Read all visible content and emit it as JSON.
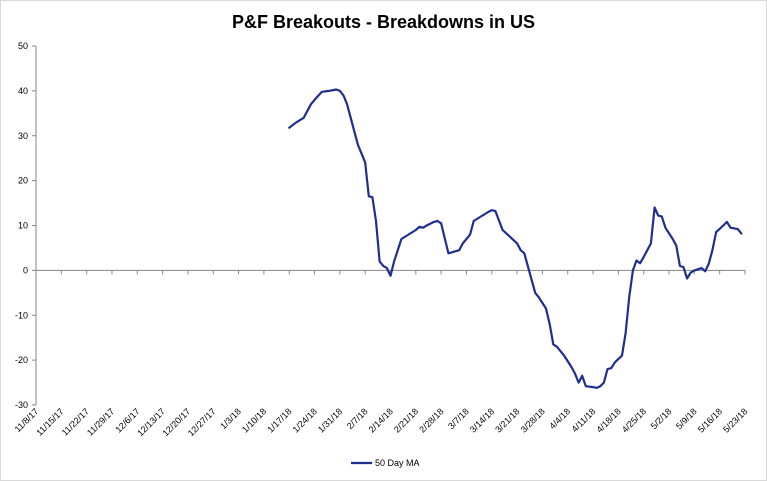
{
  "chart_data": {
    "type": "line",
    "title": "P&F Breakouts - Breakdowns in US",
    "xlabel": "",
    "ylabel": "",
    "ylim": [
      -30,
      50
    ],
    "y_ticks": [
      50,
      40,
      30,
      20,
      10,
      0,
      -10,
      -20,
      -30
    ],
    "x_tick_labels": [
      "11/8/17",
      "11/15/17",
      "11/22/17",
      "11/29/17",
      "12/6/17",
      "12/13/17",
      "12/20/17",
      "12/27/17",
      "1/3/18",
      "1/10/18",
      "1/17/18",
      "1/24/18",
      "1/31/18",
      "2/7/18",
      "2/14/18",
      "2/21/18",
      "2/28/18",
      "3/7/18",
      "3/14/18",
      "3/21/18",
      "3/28/18",
      "4/4/18",
      "4/11/18",
      "4/18/18",
      "4/25/18",
      "5/2/18",
      "5/9/18",
      "5/16/18",
      "5/23/18"
    ],
    "x_range": [
      "2017-11-08",
      "2018-05-23"
    ],
    "grid": false,
    "legend_position": "bottom",
    "series": [
      {
        "name": "50 Day MA",
        "color": "#1f2f8f",
        "points": [
          [
            "2018-01-17",
            31.8
          ],
          [
            "2018-01-19",
            33.0
          ],
          [
            "2018-01-21",
            34.0
          ],
          [
            "2018-01-23",
            37.0
          ],
          [
            "2018-01-24",
            38.0
          ],
          [
            "2018-01-26",
            39.8
          ],
          [
            "2018-01-28",
            40.0
          ],
          [
            "2018-01-30",
            40.3
          ],
          [
            "2018-01-31",
            40.0
          ],
          [
            "2018-02-01",
            39.0
          ],
          [
            "2018-02-02",
            37.0
          ],
          [
            "2018-02-03",
            34.0
          ],
          [
            "2018-02-04",
            31.0
          ],
          [
            "2018-02-05",
            28.0
          ],
          [
            "2018-02-06",
            26.0
          ],
          [
            "2018-02-07",
            24.0
          ],
          [
            "2018-02-08",
            16.5
          ],
          [
            "2018-02-09",
            16.3
          ],
          [
            "2018-02-10",
            11.0
          ],
          [
            "2018-02-11",
            2.0
          ],
          [
            "2018-02-12",
            1.0
          ],
          [
            "2018-02-13",
            0.5
          ],
          [
            "2018-02-14",
            -1.2
          ],
          [
            "2018-02-15",
            2.0
          ],
          [
            "2018-02-17",
            7.0
          ],
          [
            "2018-02-19",
            8.0
          ],
          [
            "2018-02-21",
            9.0
          ],
          [
            "2018-02-22",
            9.7
          ],
          [
            "2018-02-23",
            9.5
          ],
          [
            "2018-02-24",
            10.0
          ],
          [
            "2018-02-26",
            10.8
          ],
          [
            "2018-02-27",
            11.0
          ],
          [
            "2018-02-28",
            10.5
          ],
          [
            "2018-03-02",
            3.8
          ],
          [
            "2018-03-05",
            4.5
          ],
          [
            "2018-03-06",
            6.0
          ],
          [
            "2018-03-08",
            8.0
          ],
          [
            "2018-03-09",
            11.0
          ],
          [
            "2018-03-11",
            12.0
          ],
          [
            "2018-03-13",
            13.0
          ],
          [
            "2018-03-14",
            13.4
          ],
          [
            "2018-03-15",
            13.2
          ],
          [
            "2018-03-17",
            9.0
          ],
          [
            "2018-03-19",
            7.5
          ],
          [
            "2018-03-21",
            6.0
          ],
          [
            "2018-03-22",
            4.5
          ],
          [
            "2018-03-23",
            3.8
          ],
          [
            "2018-03-26",
            -5.0
          ],
          [
            "2018-03-27",
            -6.0
          ],
          [
            "2018-03-29",
            -8.5
          ],
          [
            "2018-03-30",
            -12.0
          ],
          [
            "2018-03-31",
            -16.5
          ],
          [
            "2018-04-01",
            -17.0
          ],
          [
            "2018-04-03",
            -19.0
          ],
          [
            "2018-04-05",
            -21.5
          ],
          [
            "2018-04-06",
            -23.0
          ],
          [
            "2018-04-07",
            -25.0
          ],
          [
            "2018-04-08",
            -23.5
          ],
          [
            "2018-04-09",
            -25.8
          ],
          [
            "2018-04-11",
            -26.0
          ],
          [
            "2018-04-12",
            -26.2
          ],
          [
            "2018-04-13",
            -25.8
          ],
          [
            "2018-04-14",
            -25.0
          ],
          [
            "2018-04-15",
            -22.0
          ],
          [
            "2018-04-16",
            -21.8
          ],
          [
            "2018-04-17",
            -20.5
          ],
          [
            "2018-04-19",
            -19.0
          ],
          [
            "2018-04-20",
            -14.0
          ],
          [
            "2018-04-21",
            -6.0
          ],
          [
            "2018-04-22",
            0.0
          ],
          [
            "2018-04-23",
            2.2
          ],
          [
            "2018-04-24",
            1.6
          ],
          [
            "2018-04-25",
            3.0
          ],
          [
            "2018-04-26",
            4.5
          ],
          [
            "2018-04-27",
            6.0
          ],
          [
            "2018-04-28",
            14.0
          ],
          [
            "2018-04-29",
            12.2
          ],
          [
            "2018-04-30",
            12.0
          ],
          [
            "2018-05-01",
            9.5
          ],
          [
            "2018-05-03",
            7.0
          ],
          [
            "2018-05-04",
            5.5
          ],
          [
            "2018-05-05",
            1.0
          ],
          [
            "2018-05-06",
            0.7
          ],
          [
            "2018-05-07",
            -1.8
          ],
          [
            "2018-05-08",
            -0.5
          ],
          [
            "2018-05-09",
            0.0
          ],
          [
            "2018-05-11",
            0.5
          ],
          [
            "2018-05-12",
            -0.2
          ],
          [
            "2018-05-13",
            1.5
          ],
          [
            "2018-05-14",
            4.5
          ],
          [
            "2018-05-15",
            8.5
          ],
          [
            "2018-05-17",
            10.0
          ],
          [
            "2018-05-18",
            10.8
          ],
          [
            "2018-05-19",
            9.5
          ],
          [
            "2018-05-21",
            9.2
          ],
          [
            "2018-05-22",
            8.2
          ]
        ]
      }
    ]
  }
}
